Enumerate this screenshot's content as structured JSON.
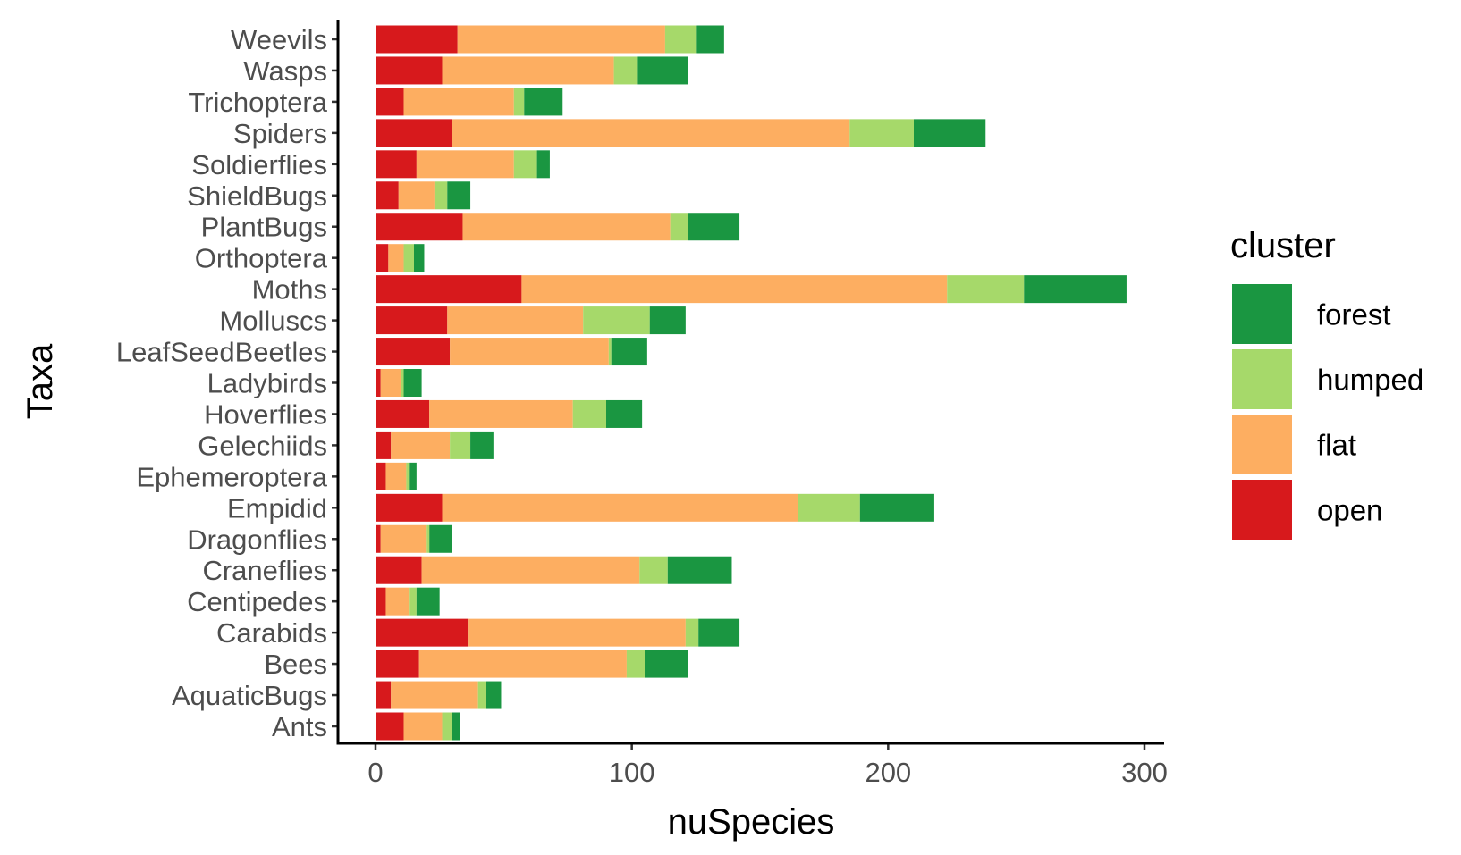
{
  "chart_data": {
    "type": "bar",
    "orientation": "horizontal",
    "stacked": true,
    "xlabel": "nuSpecies",
    "ylabel": "Taxa",
    "xlim": [
      -15,
      308
    ],
    "x_ticks": [
      0,
      100,
      200,
      300
    ],
    "categories": [
      "Ants",
      "AquaticBugs",
      "Bees",
      "Carabids",
      "Centipedes",
      "Craneflies",
      "Dragonflies",
      "Empidid",
      "Ephemeroptera",
      "Gelechiids",
      "Hoverflies",
      "Ladybirds",
      "LeafSeedBeetles",
      "Molluscs",
      "Moths",
      "Orthoptera",
      "PlantBugs",
      "ShieldBugs",
      "Soldierflies",
      "Spiders",
      "Trichoptera",
      "Wasps",
      "Weevils"
    ],
    "series": [
      {
        "name": "open",
        "color": "#d7191c",
        "values": [
          11,
          6,
          17,
          36,
          4,
          18,
          2,
          26,
          4,
          6,
          21,
          2,
          29,
          28,
          57,
          5,
          34,
          9,
          16,
          30,
          11,
          26,
          32
        ]
      },
      {
        "name": "flat",
        "color": "#fdae61",
        "values": [
          15,
          34,
          81,
          85,
          9,
          85,
          18,
          139,
          8,
          23,
          56,
          8,
          62,
          53,
          166,
          6,
          81,
          14,
          38,
          155,
          43,
          67,
          81
        ]
      },
      {
        "name": "humped",
        "color": "#a6d96a",
        "values": [
          4,
          3,
          7,
          5,
          3,
          11,
          1,
          24,
          1,
          8,
          13,
          1,
          1,
          26,
          30,
          4,
          7,
          5,
          9,
          25,
          4,
          9,
          12
        ]
      },
      {
        "name": "forest",
        "color": "#1a9641",
        "values": [
          3,
          6,
          17,
          16,
          9,
          25,
          9,
          29,
          3,
          9,
          14,
          7,
          14,
          14,
          40,
          4,
          20,
          9,
          5,
          28,
          15,
          20,
          11
        ]
      }
    ],
    "legend": {
      "title": "cluster",
      "position": "right",
      "order": [
        "forest",
        "humped",
        "flat",
        "open"
      ]
    },
    "grid": false
  }
}
